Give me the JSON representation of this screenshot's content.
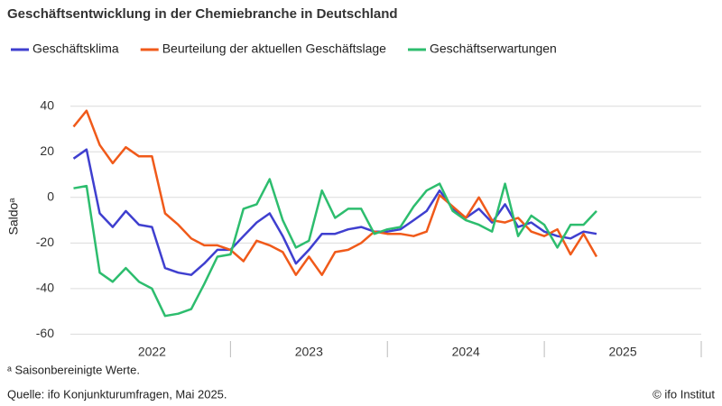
{
  "chart_data": {
    "type": "line",
    "title": "Geschäftsentwicklung in der Chemiebranche in Deutschland",
    "ylabel": "Saldoᵃ",
    "footnote": "ᵃ Saisonbereinigte Werte.",
    "source": "Quelle: ifo Konjunkturumfragen, Mai 2025.",
    "credit": "© ifo Institut",
    "x": [
      2022,
      2022.083,
      2022.167,
      2022.25,
      2022.333,
      2022.417,
      2022.5,
      2022.583,
      2022.667,
      2022.75,
      2022.833,
      2022.917,
      2023,
      2023.083,
      2023.167,
      2023.25,
      2023.333,
      2023.417,
      2023.5,
      2023.583,
      2023.667,
      2023.75,
      2023.833,
      2023.917,
      2024,
      2024.083,
      2024.167,
      2024.25,
      2024.333,
      2024.417,
      2024.5,
      2024.583,
      2024.667,
      2024.75,
      2024.833,
      2024.917,
      2025,
      2025.083,
      2025.167,
      2025.25,
      2025.333
    ],
    "series": [
      {
        "name": "Geschäftsklima",
        "color": "#3f3fcf",
        "values": [
          17,
          21,
          -7,
          -13,
          -6,
          -12,
          -13,
          -31,
          -33,
          -34,
          -29,
          -23,
          -23,
          -17,
          -11,
          -7,
          -17,
          -29,
          -23,
          -16,
          -16,
          -14,
          -13,
          -15,
          -15,
          -14,
          -10,
          -6,
          3,
          -5,
          -9,
          -5,
          -11,
          -3,
          -13,
          -11,
          -15,
          -17,
          -18,
          -15,
          -16
        ]
      },
      {
        "name": "Beurteilung der aktuellen Geschäftslage",
        "color": "#f05a1a",
        "values": [
          31,
          38,
          23,
          15,
          22,
          18,
          18,
          -7,
          -12,
          -18,
          -21,
          -21,
          -23,
          -28,
          -19,
          -21,
          -24,
          -34,
          -26,
          -34,
          -24,
          -23,
          -20,
          -15,
          -16,
          -16,
          -17,
          -15,
          1,
          -4,
          -9,
          0,
          -10,
          -11,
          -9,
          -15,
          -17,
          -14,
          -25,
          -16,
          -26
        ]
      },
      {
        "name": "Geschäftserwartungen",
        "color": "#2dbd6e",
        "values": [
          4,
          5,
          -33,
          -37,
          -31,
          -37,
          -40,
          -52,
          -51,
          -49,
          -38,
          -26,
          -25,
          -5,
          -3,
          8,
          -10,
          -22,
          -19,
          3,
          -9,
          -5,
          -5,
          -16,
          -14,
          -13,
          -4,
          3,
          6,
          -6,
          -10,
          -12,
          -15,
          6,
          -17,
          -8,
          -12,
          -22,
          -12,
          -12,
          -6
        ]
      }
    ],
    "xlim": [
      2021.98,
      2026
    ],
    "xticks": [
      {
        "value": 2022.5,
        "label": "2022"
      },
      {
        "value": 2023.5,
        "label": "2023"
      },
      {
        "value": 2024.5,
        "label": "2024"
      },
      {
        "value": 2025.5,
        "label": "2025"
      }
    ],
    "ylim": [
      -63,
      47
    ],
    "yticks": [
      -60,
      -40,
      -20,
      0,
      20,
      40
    ],
    "grid": true
  }
}
